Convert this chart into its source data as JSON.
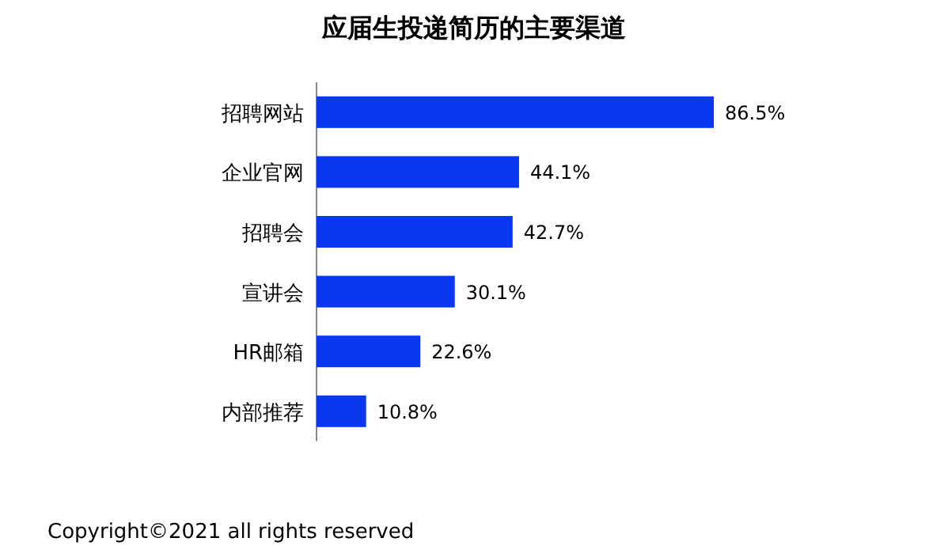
{
  "chart_data": {
    "type": "bar",
    "orientation": "horizontal",
    "title": "应届生投递简历的主要渠道",
    "categories": [
      "招聘网站",
      "企业官网",
      "招聘会",
      "宣讲会",
      "HR邮箱",
      "内部推荐"
    ],
    "values": [
      86.5,
      44.1,
      42.7,
      30.1,
      22.6,
      10.8
    ],
    "value_labels": [
      "86.5%",
      "44.1%",
      "42.7%",
      "30.1%",
      "22.6%",
      "10.8%"
    ],
    "color": "#0a37f0",
    "annotations": [
      "Copyright©2021 all rights reserved"
    ]
  }
}
